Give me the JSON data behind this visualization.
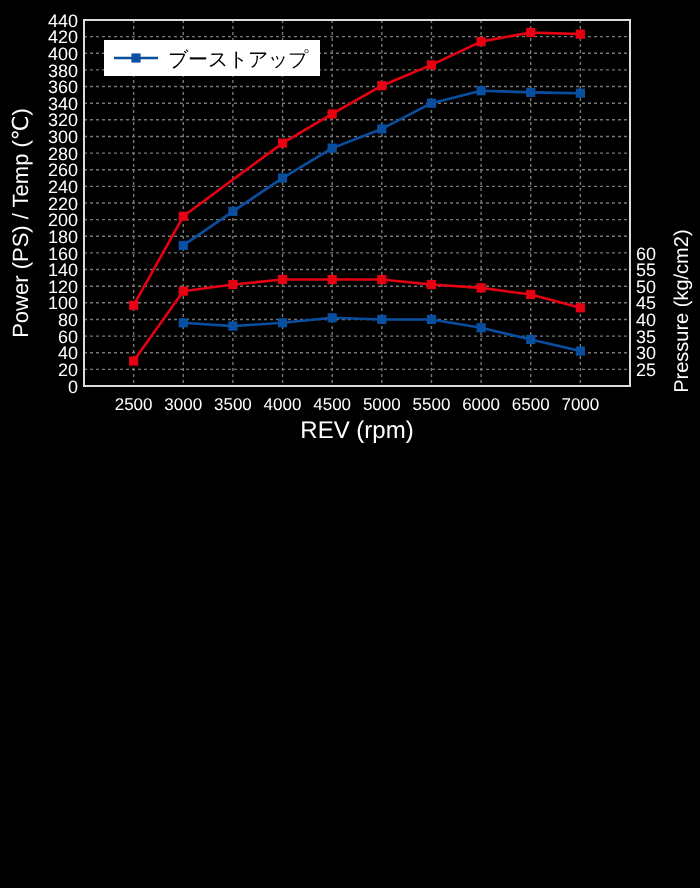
{
  "chart_data": {
    "type": "line",
    "xlabel": "REV (rpm)",
    "ylabel": "Power (PS) / Temp (℃)",
    "y2label": "Pressure (kg/cm2)",
    "xlim": [
      2000,
      7500
    ],
    "xticks": [
      2500,
      3000,
      3500,
      4000,
      4500,
      5000,
      5500,
      6000,
      6500,
      7000
    ],
    "ylim": [
      0,
      440
    ],
    "yticks": [
      0,
      20,
      40,
      60,
      80,
      100,
      120,
      140,
      160,
      180,
      200,
      220,
      240,
      260,
      280,
      300,
      320,
      340,
      360,
      380,
      400,
      420,
      440
    ],
    "y2lim": [
      20,
      130
    ],
    "y2ticks": [
      25,
      30,
      35,
      40,
      45,
      50,
      55,
      60
    ],
    "grid": true,
    "legend": "top left",
    "marker": "square",
    "line_style": "solid",
    "series": [
      {
        "color": "#e60012",
        "x": [
          2500,
          3000,
          4000,
          4500,
          5000,
          5500,
          6000,
          6500,
          7000
        ],
        "values": [
          97,
          204,
          292,
          327,
          361,
          386,
          414,
          425,
          423
        ]
      },
      {
        "name": "ブーストアップ",
        "color": "#0a4ea0",
        "x": [
          3000,
          3500,
          4000,
          4500,
          5000,
          5500,
          6000,
          6500,
          7000
        ],
        "values": [
          169,
          210,
          250,
          286,
          309,
          340,
          355,
          353,
          352
        ]
      },
      {
        "color": "#e60012",
        "axis": "y2",
        "x": [
          2500,
          3000,
          3500,
          4000,
          4500,
          5000,
          5500,
          6000,
          6500,
          7000
        ],
        "values": [
          27.5,
          48.5,
          50.5,
          52,
          52,
          52,
          50.5,
          49.5,
          47.5,
          43.5
        ]
      },
      {
        "color": "#0a4ea0",
        "axis": "y2",
        "x": [
          3000,
          3500,
          4000,
          4500,
          5000,
          5500,
          6000,
          6500,
          7000
        ],
        "values": [
          39,
          38,
          39,
          40.5,
          40,
          40,
          37.5,
          34,
          30.5
        ]
      }
    ]
  }
}
